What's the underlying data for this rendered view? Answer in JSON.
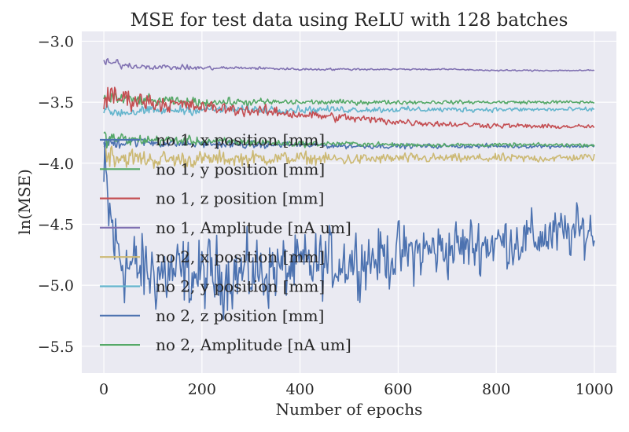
{
  "colors": {
    "plot_background": "#EAEAF2",
    "grid": "#FFFFFF",
    "text": "#262626"
  },
  "chart_data": {
    "type": "line",
    "title": "MSE for test data using ReLU with 128 batches",
    "xlabel": "Number of epochs",
    "ylabel": "ln(MSE)",
    "xlim": [
      -45,
      1045
    ],
    "ylim": [
      -5.72,
      -2.92
    ],
    "xticks": [
      0,
      200,
      400,
      600,
      800,
      1000
    ],
    "xtick_labels": [
      "0",
      "200",
      "400",
      "600",
      "800",
      "1000"
    ],
    "yticks": [
      -3.0,
      -3.5,
      -4.0,
      -4.5,
      -5.0,
      -5.5
    ],
    "ytick_labels": [
      "−3.0",
      "−3.5",
      "−4.0",
      "−4.5",
      "−5.0",
      "−5.5"
    ],
    "grid": true,
    "legend_position": "left",
    "series": [
      {
        "name": "no 1, x position [mm]",
        "color": "#4C72B0",
        "x": [
          0,
          25,
          50,
          100,
          150,
          200,
          300,
          400,
          500,
          600,
          700,
          800,
          900,
          1000
        ],
        "y": [
          -3.84,
          -3.83,
          -3.82,
          -3.83,
          -3.84,
          -3.84,
          -3.85,
          -3.85,
          -3.86,
          -3.86,
          -3.86,
          -3.86,
          -3.86,
          -3.86
        ],
        "noise": [
          0.06,
          0.05,
          0.04,
          0.035,
          0.03,
          0.03,
          0.025,
          0.02,
          0.018,
          0.016,
          0.015,
          0.015,
          0.014,
          0.014
        ]
      },
      {
        "name": "no 1, y position [mm]",
        "color": "#55A868",
        "x": [
          0,
          25,
          50,
          100,
          200,
          300,
          400,
          500,
          600,
          700,
          800,
          900,
          1000
        ],
        "y": [
          -3.8,
          -3.8,
          -3.81,
          -3.81,
          -3.82,
          -3.83,
          -3.84,
          -3.84,
          -3.85,
          -3.85,
          -3.85,
          -3.85,
          -3.85
        ],
        "noise": [
          0.06,
          0.05,
          0.04,
          0.035,
          0.03,
          0.025,
          0.02,
          0.016,
          0.014,
          0.013,
          0.012,
          0.012,
          0.012
        ]
      },
      {
        "name": "no 1, z position [mm]",
        "color": "#C44E52",
        "x": [
          0,
          25,
          50,
          100,
          200,
          300,
          400,
          500,
          600,
          700,
          800,
          900,
          1000
        ],
        "y": [
          -3.48,
          -3.46,
          -3.47,
          -3.5,
          -3.54,
          -3.57,
          -3.6,
          -3.63,
          -3.66,
          -3.68,
          -3.69,
          -3.7,
          -3.7
        ],
        "noise": [
          0.1,
          0.09,
          0.07,
          0.06,
          0.045,
          0.04,
          0.035,
          0.03,
          0.025,
          0.02,
          0.018,
          0.016,
          0.015
        ]
      },
      {
        "name": "no 1, Amplitude [nA um]",
        "color": "#8172B2",
        "x": [
          0,
          25,
          50,
          100,
          200,
          300,
          400,
          500,
          600,
          700,
          800,
          900,
          1000
        ],
        "y": [
          -3.18,
          -3.18,
          -3.2,
          -3.21,
          -3.22,
          -3.22,
          -3.23,
          -3.23,
          -3.23,
          -3.23,
          -3.24,
          -3.24,
          -3.24
        ],
        "noise": [
          0.03,
          0.03,
          0.022,
          0.018,
          0.014,
          0.01,
          0.008,
          0.007,
          0.006,
          0.005,
          0.005,
          0.005,
          0.005
        ]
      },
      {
        "name": "no 2, x position [mm]",
        "color": "#CCB974",
        "x": [
          0,
          25,
          50,
          100,
          200,
          300,
          400,
          500,
          600,
          700,
          800,
          900,
          1000
        ],
        "y": [
          -3.9,
          -3.94,
          -3.96,
          -3.97,
          -3.97,
          -3.96,
          -3.96,
          -3.97,
          -3.96,
          -3.96,
          -3.96,
          -3.96,
          -3.95
        ],
        "noise": [
          0.1,
          0.08,
          0.07,
          0.06,
          0.055,
          0.05,
          0.045,
          0.04,
          0.035,
          0.03,
          0.03,
          0.028,
          0.025
        ]
      },
      {
        "name": "no 2, y position [mm]",
        "color": "#64B5CD",
        "x": [
          0,
          25,
          50,
          100,
          200,
          300,
          400,
          500,
          600,
          700,
          800,
          900,
          1000
        ],
        "y": [
          -3.57,
          -3.58,
          -3.58,
          -3.57,
          -3.56,
          -3.56,
          -3.56,
          -3.56,
          -3.56,
          -3.56,
          -3.56,
          -3.56,
          -3.56
        ],
        "noise": [
          0.05,
          0.045,
          0.04,
          0.035,
          0.03,
          0.028,
          0.025,
          0.022,
          0.02,
          0.018,
          0.016,
          0.015,
          0.015
        ]
      },
      {
        "name": "no 2, z position [mm]",
        "color": "#4C72B0",
        "x": [
          0,
          25,
          50,
          100,
          200,
          300,
          400,
          500,
          600,
          700,
          800,
          900,
          1000
        ],
        "y": [
          -4.2,
          -4.7,
          -4.85,
          -4.9,
          -4.92,
          -4.9,
          -4.85,
          -4.8,
          -4.75,
          -4.7,
          -4.65,
          -4.6,
          -4.55
        ],
        "noise": [
          0.45,
          0.32,
          0.28,
          0.26,
          0.25,
          0.24,
          0.23,
          0.22,
          0.21,
          0.2,
          0.19,
          0.18,
          0.17
        ]
      },
      {
        "name": "no 2, Amplitude [nA um]",
        "color": "#55A868",
        "x": [
          0,
          25,
          50,
          100,
          200,
          300,
          400,
          500,
          600,
          700,
          800,
          900,
          1000
        ],
        "y": [
          -3.45,
          -3.47,
          -3.48,
          -3.49,
          -3.5,
          -3.5,
          -3.5,
          -3.5,
          -3.5,
          -3.5,
          -3.5,
          -3.5,
          -3.5
        ],
        "noise": [
          0.06,
          0.05,
          0.04,
          0.035,
          0.03,
          0.025,
          0.02,
          0.016,
          0.014,
          0.012,
          0.012,
          0.012,
          0.012
        ]
      }
    ]
  }
}
